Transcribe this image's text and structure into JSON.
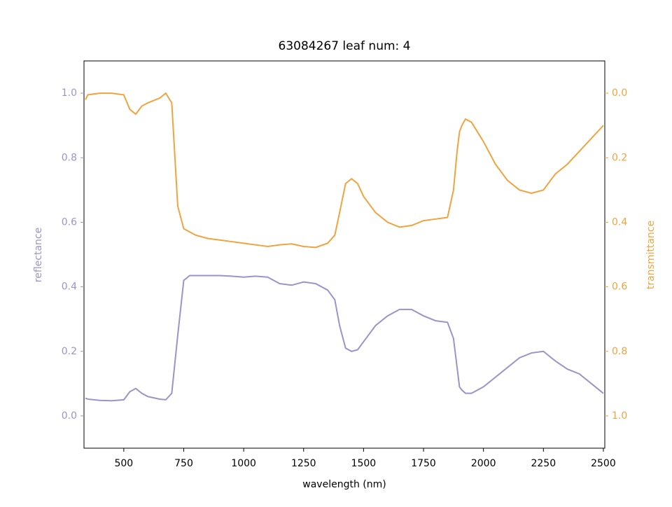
{
  "chart_data": {
    "type": "line",
    "title": "63084267 leaf num: 4",
    "x_label": "wavelength (nm)",
    "y_label": "reflectance",
    "y2_label": "transmittance",
    "x": [
      340,
      350,
      400,
      450,
      500,
      525,
      550,
      575,
      600,
      650,
      675,
      700,
      725,
      750,
      775,
      800,
      850,
      900,
      950,
      1000,
      1050,
      1100,
      1150,
      1200,
      1250,
      1300,
      1350,
      1380,
      1400,
      1425,
      1450,
      1475,
      1500,
      1550,
      1600,
      1650,
      1700,
      1750,
      1800,
      1850,
      1875,
      1890,
      1900,
      1910,
      1925,
      1950,
      2000,
      2050,
      2100,
      2150,
      2200,
      2250,
      2300,
      2350,
      2400,
      2450,
      2500
    ],
    "series": [
      {
        "name": "reflectance",
        "color": "#9a95c9",
        "axis": "y",
        "values": [
          0.055,
          0.052,
          0.048,
          0.047,
          0.05,
          0.075,
          0.085,
          0.07,
          0.06,
          0.052,
          0.05,
          0.07,
          0.25,
          0.42,
          0.435,
          0.435,
          0.435,
          0.435,
          0.433,
          0.43,
          0.433,
          0.43,
          0.41,
          0.405,
          0.415,
          0.41,
          0.39,
          0.36,
          0.28,
          0.21,
          0.2,
          0.205,
          0.23,
          0.28,
          0.31,
          0.33,
          0.33,
          0.31,
          0.295,
          0.29,
          0.24,
          0.15,
          0.09,
          0.08,
          0.07,
          0.07,
          0.09,
          0.12,
          0.15,
          0.18,
          0.195,
          0.2,
          0.17,
          0.145,
          0.13,
          0.1,
          0.07
        ]
      },
      {
        "name": "transmittance",
        "color": "#f0a43f",
        "axis": "y2",
        "values": [
          0.02,
          0.005,
          0.0,
          0.0,
          0.005,
          0.05,
          0.065,
          0.04,
          0.03,
          0.015,
          0.0,
          0.03,
          0.35,
          0.42,
          0.43,
          0.44,
          0.45,
          0.455,
          0.46,
          0.465,
          0.47,
          0.475,
          0.47,
          0.467,
          0.475,
          0.478,
          0.465,
          0.44,
          0.37,
          0.28,
          0.265,
          0.28,
          0.32,
          0.37,
          0.4,
          0.415,
          0.41,
          0.395,
          0.39,
          0.385,
          0.3,
          0.18,
          0.12,
          0.1,
          0.08,
          0.09,
          0.15,
          0.22,
          0.27,
          0.3,
          0.31,
          0.3,
          0.25,
          0.22,
          0.18,
          0.14,
          0.1
        ]
      }
    ],
    "xlim": [
      334,
      2506
    ],
    "xticks": [
      500,
      750,
      1000,
      1250,
      1500,
      1750,
      2000,
      2250,
      2500
    ],
    "ylim": [
      -0.1,
      1.1
    ],
    "yticks": [
      {
        "value": 0,
        "label": "0.0"
      },
      0.2,
      0.4,
      0.6,
      0.8,
      {
        "value": 1,
        "label": "1.0"
      }
    ],
    "y2lim": [
      1.1,
      -0.1
    ],
    "y2ticks": [
      {
        "value": 0,
        "label": "0.0"
      },
      0.2,
      0.4,
      0.6,
      0.8,
      {
        "value": 1,
        "label": "1.0"
      }
    ]
  }
}
